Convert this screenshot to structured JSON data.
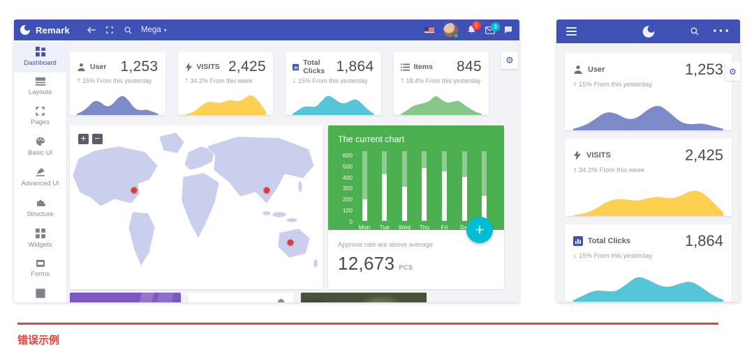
{
  "page": {
    "caption": "错误示例",
    "accent_red": "#e8403a"
  },
  "brand": {
    "name": "Remark",
    "menu_label": "Mega"
  },
  "navbar": {
    "notification_badge": "5",
    "message_badge": "3"
  },
  "sidebar": {
    "items": [
      {
        "label": "Dashboard",
        "icon": "dashboard-icon",
        "active": true
      },
      {
        "label": "Layouts",
        "icon": "layouts-icon",
        "active": false
      },
      {
        "label": "Pages",
        "icon": "pages-icon",
        "active": false
      },
      {
        "label": "Basic UI",
        "icon": "basic-ui-icon",
        "active": false
      },
      {
        "label": "Advanced UI",
        "icon": "advanced-ui-icon",
        "active": false
      },
      {
        "label": "Structure",
        "icon": "structure-icon",
        "active": false
      },
      {
        "label": "Widgets",
        "icon": "widgets-icon",
        "active": false
      },
      {
        "label": "Forms",
        "icon": "forms-icon",
        "active": false
      },
      {
        "label": "",
        "icon": "tables-icon",
        "active": false
      }
    ]
  },
  "stats": [
    {
      "label": "User",
      "icon": "user-icon",
      "value": "1,253",
      "trend": "up",
      "arrow": "↑",
      "trend_text": "15% From this yesterday",
      "color": "#7c8ac9"
    },
    {
      "label": "VISITS",
      "icon": "bolt-icon",
      "value": "2,425",
      "trend": "up",
      "arrow": "↑",
      "trend_text": "34.2% From this week",
      "color": "#fdd051"
    },
    {
      "label": "Total Clicks",
      "icon": "bar-chart-icon",
      "value": "1,864",
      "trend": "down",
      "arrow": "↓",
      "trend_text": "15% From this yesterday",
      "color": "#55c6d8"
    },
    {
      "label": "Items",
      "icon": "list-icon",
      "value": "845",
      "trend": "up",
      "arrow": "↑",
      "trend_text": "18.4% From this yesterday",
      "color": "#84c98a"
    }
  ],
  "map": {
    "zoom_in_label": "+",
    "zoom_out_label": "−",
    "marker_color": "#e53935",
    "markers": [
      {
        "name": "north-america-marker",
        "x": 25.4,
        "y": 39.5
      },
      {
        "name": "east-asia-marker",
        "x": 77.9,
        "y": 39.5
      },
      {
        "name": "australia-marker",
        "x": 87.3,
        "y": 71.5
      }
    ]
  },
  "current_chart": {
    "title": "The current chart",
    "note": "Approve rate are above average",
    "total": "12,673",
    "unit": "PCS",
    "fab_label": "+"
  },
  "chart_data": [
    {
      "type": "bar",
      "title": "The current chart",
      "categories": [
        "Mon",
        "Tue",
        "Wed",
        "Thu",
        "Fri",
        "Sat",
        "Sun"
      ],
      "values": [
        195,
        420,
        310,
        480,
        445,
        400,
        230
      ],
      "ylim": [
        0,
        600
      ],
      "yticks": [
        600,
        500,
        400,
        300,
        200,
        100,
        0
      ],
      "track_max": 630,
      "bar_fill": "#ffffff",
      "track_fill": "rgba(255,255,255,0.38)",
      "legend": "none",
      "grid": false
    },
    {
      "type": "area",
      "name": "User sparkline",
      "color": "#7c8ac9",
      "values_normalized": [
        0.04,
        0.12,
        0.3,
        0.52,
        0.48,
        0.3,
        0.34,
        0.6,
        0.72,
        0.5,
        0.22,
        0.16,
        0.2,
        0.12,
        0.04
      ]
    },
    {
      "type": "area",
      "name": "Visits sparkline",
      "color": "#fdd051",
      "values_normalized": [
        0.02,
        0.06,
        0.18,
        0.38,
        0.48,
        0.46,
        0.42,
        0.5,
        0.55,
        0.48,
        0.55,
        0.72,
        0.68,
        0.4,
        0.1
      ]
    },
    {
      "type": "area",
      "name": "Total Clicks sparkline",
      "color": "#55c6d8",
      "values_normalized": [
        0.04,
        0.18,
        0.32,
        0.3,
        0.28,
        0.5,
        0.72,
        0.62,
        0.45,
        0.4,
        0.52,
        0.58,
        0.4,
        0.18,
        0.05
      ]
    },
    {
      "type": "area",
      "name": "Items sparkline",
      "color": "#84c98a",
      "values_normalized": [
        0.03,
        0.15,
        0.32,
        0.38,
        0.42,
        0.5,
        0.72,
        0.55,
        0.42,
        0.48,
        0.52,
        0.35,
        0.22,
        0.1,
        0.04
      ]
    }
  ]
}
